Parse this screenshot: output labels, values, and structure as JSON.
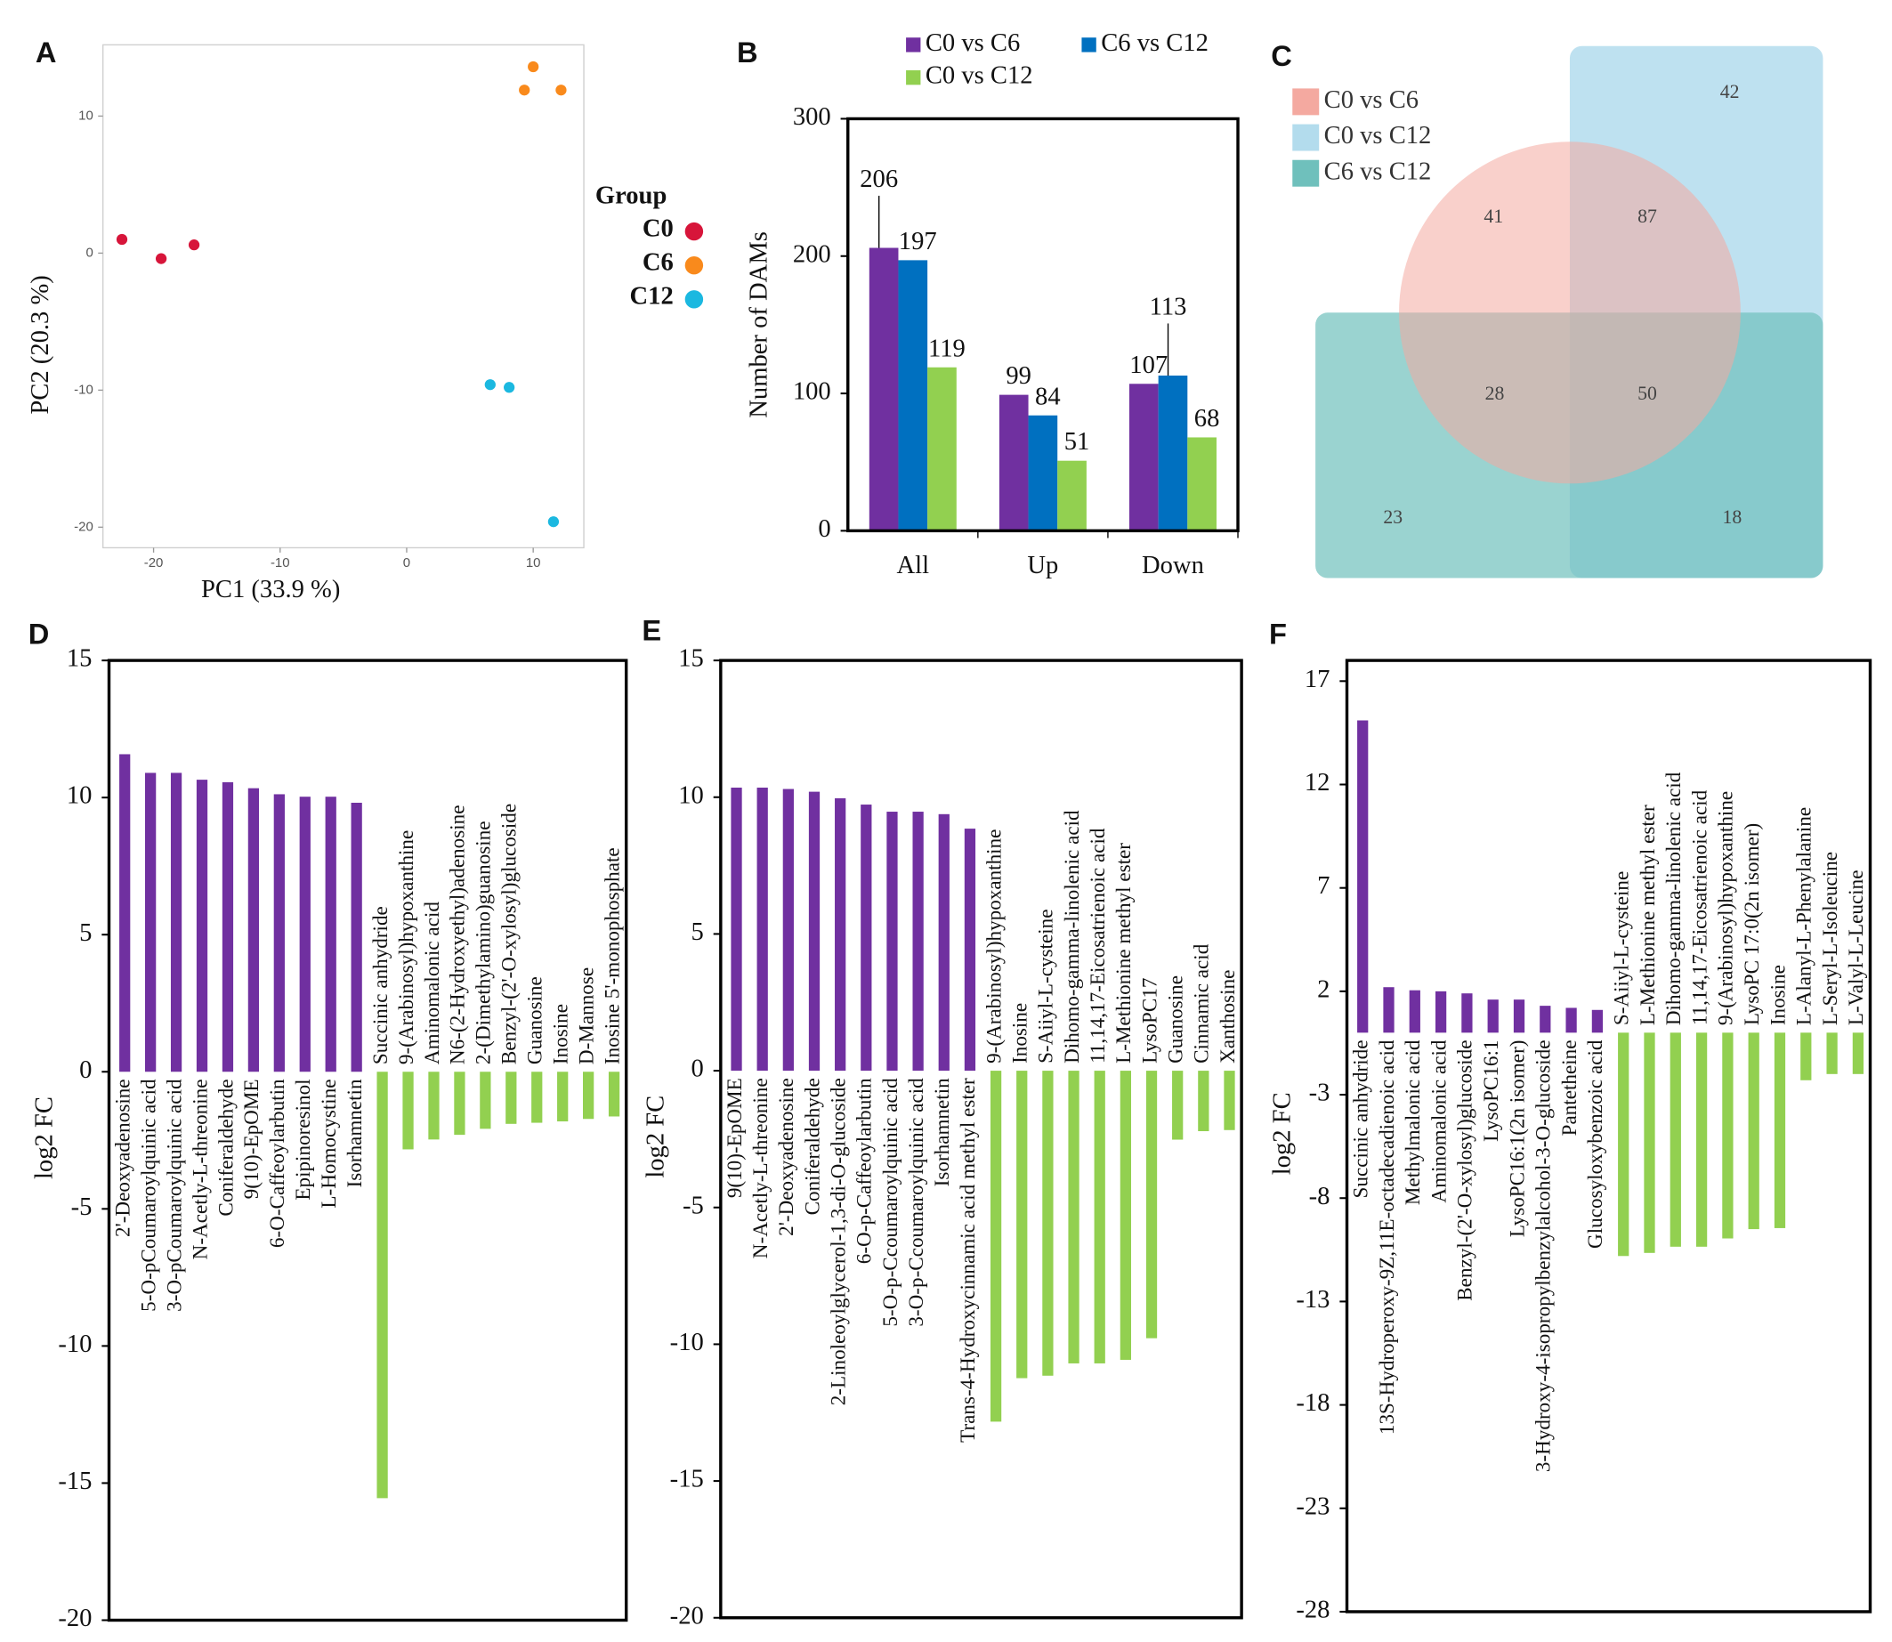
{
  "chart_data": [
    {
      "type": "scatter",
      "panel": "A",
      "xlabel": "PC1 (33.9 %)",
      "ylabel": "PC2 (20.3 %)",
      "legend_title": "Group",
      "xlim": [
        -24,
        14
      ],
      "ylim": [
        -21.5,
        15.2
      ],
      "xticks": [
        -20,
        -10,
        0,
        10
      ],
      "yticks": [
        -20,
        -10,
        0,
        10
      ],
      "series": [
        {
          "name": "C0",
          "color": "#d7153a",
          "x": [
            -22.5,
            -19.4,
            -16.8
          ],
          "y": [
            1.0,
            -0.4,
            0.6
          ]
        },
        {
          "name": "C6",
          "color": "#f98a1c",
          "x": [
            10.0,
            9.3,
            12.2
          ],
          "y": [
            13.6,
            11.9,
            11.9
          ]
        },
        {
          "name": "C12",
          "color": "#1bb8e0",
          "x": [
            6.6,
            8.1,
            11.6
          ],
          "y": [
            -9.6,
            -9.8,
            -19.6
          ]
        }
      ]
    },
    {
      "type": "bar",
      "panel": "B",
      "ylabel": "Number of DAMs",
      "categories": [
        "All",
        "Up",
        "Down"
      ],
      "ylim": [
        0,
        300
      ],
      "yticks": [
        0,
        100,
        200,
        300
      ],
      "series": [
        {
          "name": "C0 vs C6",
          "color": "#7030a0",
          "values": [
            206,
            99,
            107
          ]
        },
        {
          "name": "C6 vs C12",
          "color": "#0070c0",
          "values": [
            197,
            84,
            113
          ]
        },
        {
          "name": "C0 vs C12",
          "color": "#92d050",
          "values": [
            119,
            51,
            68
          ]
        }
      ]
    },
    {
      "type": "venn",
      "panel": "C",
      "sets": [
        {
          "name": "C0 vs C6",
          "color": "#f4a9a0"
        },
        {
          "name": "C0 vs C12",
          "color": "#b3dced"
        },
        {
          "name": "C6 vs C12",
          "color": "#6fc0bc"
        }
      ],
      "counts": [
        42,
        41,
        87,
        28,
        50,
        23,
        18
      ]
    },
    {
      "type": "bar",
      "panel": "D",
      "ylabel": "log2 FC",
      "ylim": [
        -20,
        15
      ],
      "yticks": [
        15,
        10,
        5,
        0,
        -5,
        -10,
        -15,
        -20
      ],
      "positive_color": "#7030a0",
      "negative_color": "#92d050",
      "categories": [
        "2'-Deoxyadenosine",
        "5-O-pCoumaroylquinic acid",
        "3-O-pCoumaroylquinic acid",
        "N-Acetly-L-threonine",
        "Coniferaldehyde",
        "9(10)-EpOME",
        "6-O-Caffeoylarbutin",
        "Epipinoresinol",
        "L-Homocystine",
        "Isorhamnetin",
        "Succinic anhydride",
        "9-(Arabinosyl)hypoxanthine",
        "Aminomalonic acid",
        "N6-(2-Hydroxyethyl)adenosine",
        "2-(Dimethylamino)guanosine",
        "Benzyl-(2'-O-xylosyl)glucoside",
        "Guanosine",
        "Inosine",
        "D-Mannose",
        "Inosine 5'-monophosphate"
      ],
      "values": [
        11.58,
        10.9,
        10.9,
        10.65,
        10.56,
        10.34,
        10.12,
        10.03,
        10.03,
        9.81,
        -15.55,
        -2.83,
        -2.47,
        -2.3,
        -2.08,
        -1.9,
        -1.86,
        -1.81,
        -1.72,
        -1.63
      ]
    },
    {
      "type": "bar",
      "panel": "E",
      "ylabel": "log2 FC",
      "ylim": [
        -20,
        15
      ],
      "yticks": [
        15,
        10,
        5,
        0,
        -5,
        -10,
        -15,
        -20
      ],
      "positive_color": "#7030a0",
      "negative_color": "#92d050",
      "categories": [
        "9(10)-EpOME",
        "N-Acetly-L-threonine",
        "2'-Deoxyadenosine",
        "Coniferaldehyde",
        "2-Linoleoylglycerol-1,3-di-O-glucoside",
        "6-O-p-Caffeoylarbutin",
        "5-O-p-Ccoumaroylquinic acid",
        "3-O-p-Ccoumaroylquinic acid",
        "Isorhamnetin",
        "Trans-4-Hydroxycinnamic acid methyl ester",
        "9-(Arabinosyl)hypoxanthine",
        "Inosine",
        "S-Aiiyl-L-cysteine",
        "Dihomo-gamma-linolenic acid",
        "11,14,17-Eicosatrienoic acid",
        "L-Methionine methyl ester",
        "LysoPC17",
        "Guanosine",
        "Cinnamic acid",
        "Xanthosine"
      ],
      "values": [
        10.35,
        10.35,
        10.3,
        10.2,
        9.96,
        9.73,
        9.47,
        9.47,
        9.38,
        8.85,
        -12.83,
        -11.24,
        -11.15,
        -10.7,
        -10.7,
        -10.57,
        -9.78,
        -2.52,
        -2.21,
        -2.17
      ]
    },
    {
      "type": "bar",
      "panel": "F",
      "ylabel": "log2 FC",
      "ylim": [
        -28,
        18
      ],
      "yticks": [
        17,
        12,
        7,
        2,
        -3,
        -8,
        -13,
        -18,
        -23,
        -28
      ],
      "positive_color": "#7030a0",
      "negative_color": "#92d050",
      "categories": [
        "Succinic anhydride",
        "13S-Hydroperoxy-9Z,11E-octadecadienoic acid",
        "Methylmalonic acid",
        "Aminomalonic acid",
        "Benzyl-(2'-O-xylosyl)glucoside",
        "LysoPC16:1",
        "LysoPC16:1(2n isomer)",
        "3-Hydroxy-4-isopropylbenzylalcohol-3-O-glucoside",
        "Pantetheine",
        "Glucosyloxybenzoic acid",
        "S-Aiiyl-L-cysteine",
        "L-Methionine methyl ester",
        "Dihomo-gamma-linolenic acid",
        "11,14,17-Eicosatrienoic acid",
        "9-(Arabinosyl)hypoxanthine",
        "LysoPC 17:0(2n isomer)",
        "Inosine",
        "L-Alanyl-L-Phenylalanine",
        "L-Seryl-L-Isoleucine",
        "L-Valyl-L-Leucine"
      ],
      "values": [
        15.1,
        2.2,
        2.05,
        2.0,
        1.9,
        1.6,
        1.6,
        1.3,
        1.2,
        1.1,
        -10.8,
        -10.65,
        -10.35,
        -10.35,
        -9.95,
        -9.5,
        -9.45,
        -2.3,
        -2.0,
        -2.0
      ]
    }
  ]
}
